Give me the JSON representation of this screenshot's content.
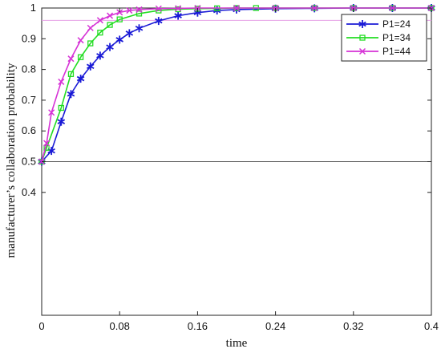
{
  "chart_data": {
    "type": "line",
    "xlabel": "time",
    "ylabel": "manufacturer’s collaboration probability",
    "xlim": [
      0,
      0.4
    ],
    "ylim": [
      0,
      1
    ],
    "xticks": [
      "0",
      "0.08",
      "0.16",
      "0.24",
      "0.32",
      "0.4"
    ],
    "yticks": [
      "0.4",
      "0.5",
      "0.6",
      "0.7",
      "0.8",
      "0.9",
      "1"
    ],
    "grid": false,
    "legend_position": "top-right",
    "reference_lines": [
      {
        "y": 0.5
      },
      {
        "y": 0.96
      }
    ],
    "series": [
      {
        "name": "P1=24",
        "color": "#1a1ad6",
        "marker": "star",
        "x": [
          0,
          0.01,
          0.02,
          0.03,
          0.04,
          0.05,
          0.06,
          0.07,
          0.08,
          0.09,
          0.1,
          0.12,
          0.14,
          0.16,
          0.18,
          0.2,
          0.24,
          0.28,
          0.32,
          0.36,
          0.4
        ],
        "y": [
          0.5,
          0.535,
          0.63,
          0.72,
          0.77,
          0.81,
          0.845,
          0.873,
          0.897,
          0.918,
          0.934,
          0.958,
          0.975,
          0.985,
          0.992,
          0.995,
          0.998,
          0.999,
          1.0,
          1.0,
          1.0
        ]
      },
      {
        "name": "P1=34",
        "color": "#22dd22",
        "marker": "square",
        "x": [
          0,
          0.005,
          0.02,
          0.03,
          0.04,
          0.05,
          0.06,
          0.07,
          0.08,
          0.1,
          0.12,
          0.14,
          0.16,
          0.18,
          0.2,
          0.22,
          0.24,
          0.28,
          0.32,
          0.36,
          0.4
        ],
        "y": [
          0.5,
          0.545,
          0.675,
          0.785,
          0.84,
          0.885,
          0.92,
          0.945,
          0.963,
          0.982,
          0.992,
          0.996,
          0.998,
          0.999,
          1.0,
          1.0,
          1.0,
          1.0,
          1.0,
          1.0,
          1.0
        ]
      },
      {
        "name": "P1=44",
        "color": "#d633d6",
        "marker": "x",
        "x": [
          0,
          0.005,
          0.01,
          0.02,
          0.03,
          0.04,
          0.05,
          0.06,
          0.07,
          0.08,
          0.09,
          0.1,
          0.12,
          0.14,
          0.16,
          0.2,
          0.24,
          0.28,
          0.32,
          0.36,
          0.4
        ],
        "y": [
          0.5,
          0.56,
          0.66,
          0.76,
          0.835,
          0.895,
          0.935,
          0.96,
          0.975,
          0.986,
          0.992,
          0.995,
          0.998,
          0.999,
          1.0,
          1.0,
          1.0,
          1.0,
          1.0,
          1.0,
          1.0
        ]
      }
    ]
  }
}
